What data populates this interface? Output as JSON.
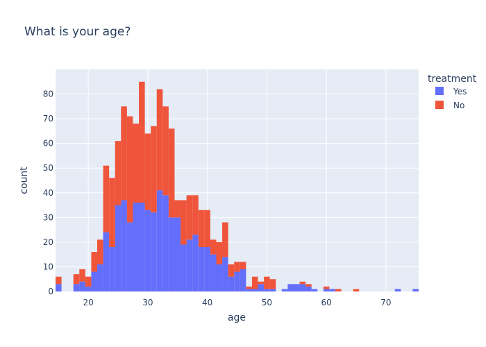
{
  "chart_data": {
    "type": "bar",
    "stacking": "stacked histogram",
    "title": "What is your age?",
    "xlabel": "age",
    "ylabel": "count",
    "xlim": [
      14.5,
      75.5
    ],
    "ylim": [
      0,
      90
    ],
    "x_tick_values": [
      20,
      30,
      40,
      50,
      60,
      70
    ],
    "y_tick_values": [
      0,
      10,
      20,
      30,
      40,
      50,
      60,
      70,
      80
    ],
    "grid": true,
    "legend": {
      "title": "treatment",
      "placement": "top-right outside plot"
    },
    "bins": [
      15,
      16,
      17,
      18,
      19,
      20,
      21,
      22,
      23,
      24,
      25,
      26,
      27,
      28,
      29,
      30,
      31,
      32,
      33,
      34,
      35,
      36,
      37,
      38,
      39,
      40,
      41,
      42,
      43,
      44,
      45,
      46,
      47,
      48,
      49,
      50,
      51,
      52,
      53,
      54,
      55,
      56,
      57,
      58,
      59,
      60,
      61,
      62,
      63,
      64,
      65,
      66,
      67,
      68,
      69,
      70,
      71,
      72,
      73,
      74,
      75
    ],
    "series": [
      {
        "name": "Yes",
        "color": "#636efa",
        "values": [
          3,
          0,
          0,
          3,
          4,
          2,
          8,
          11,
          24,
          18,
          35,
          37,
          28,
          36,
          36,
          33,
          32,
          41,
          39,
          30,
          30,
          19,
          21,
          23,
          18,
          18,
          15,
          11,
          14,
          6,
          8,
          9,
          1,
          1,
          3,
          1,
          1,
          0,
          1,
          3,
          3,
          3,
          2,
          1,
          0,
          1,
          1,
          0,
          0,
          0,
          0,
          0,
          0,
          0,
          0,
          0,
          0,
          1,
          0,
          0,
          1
        ]
      },
      {
        "name": "No",
        "color": "#ef553b",
        "values": [
          3,
          0,
          0,
          4,
          5,
          4,
          8,
          10,
          27,
          28,
          26,
          38,
          43,
          32,
          49,
          31,
          35,
          41,
          36,
          36,
          7,
          18,
          18,
          16,
          15,
          15,
          6,
          9,
          14,
          5,
          4,
          3,
          1,
          5,
          1,
          5,
          4,
          0,
          0,
          0,
          0,
          1,
          1,
          0,
          0,
          1,
          0,
          1,
          0,
          0,
          1,
          0,
          0,
          0,
          0,
          0,
          0,
          0,
          0,
          0,
          0
        ]
      }
    ]
  }
}
